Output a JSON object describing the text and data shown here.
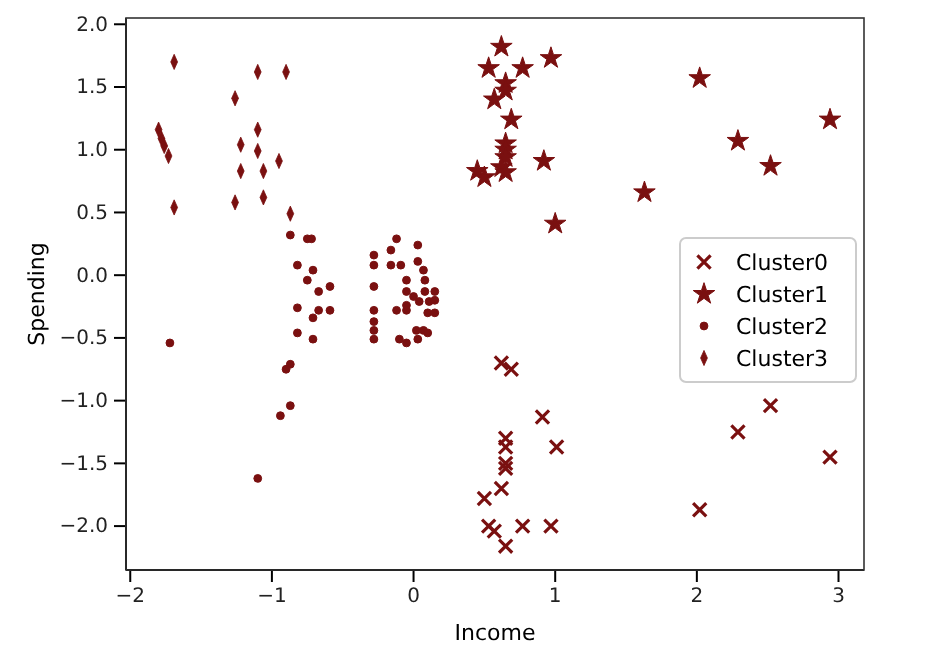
{
  "chart_data": {
    "type": "scatter",
    "xlabel": "Income",
    "ylabel": "Spending",
    "xlim": [
      -2.03,
      3.18
    ],
    "ylim": [
      -2.35,
      2.05
    ],
    "xticks": [
      {
        "value": -2,
        "label": "−2"
      },
      {
        "value": -1,
        "label": "−1"
      },
      0,
      1,
      2,
      3
    ],
    "yticks": [
      {
        "value": -2,
        "label": "−2.0"
      },
      {
        "value": -1.5,
        "label": "−1.5"
      },
      {
        "value": -1,
        "label": "−1.0"
      },
      {
        "value": -0.5,
        "label": "−0.5"
      },
      {
        "value": 0,
        "label": "0.0"
      },
      {
        "value": 0.5,
        "label": "0.5"
      },
      {
        "value": 1,
        "label": "1.0"
      },
      {
        "value": 1.5,
        "label": "1.5"
      },
      {
        "value": 2,
        "label": "2.0"
      }
    ],
    "grid": false,
    "legend": "right",
    "series": [
      {
        "name": "Cluster0",
        "color": "#7a1010",
        "marker": "cross",
        "x": [
          0.62,
          0.69,
          0.91,
          1.01,
          0.65,
          0.65,
          0.65,
          0.65,
          0.62,
          0.5,
          0.53,
          0.57,
          0.65,
          0.77,
          0.97,
          2.02,
          2.29,
          2.52,
          2.94
        ],
        "values": [
          -0.7,
          -0.75,
          -1.13,
          -1.37,
          -1.3,
          -1.37,
          -1.5,
          -1.54,
          -1.7,
          -1.78,
          -2.0,
          -2.04,
          -2.16,
          -2.0,
          -2.0,
          -1.87,
          -1.25,
          -1.04,
          -1.45
        ]
      },
      {
        "name": "Cluster1",
        "color": "#7a1010",
        "marker": "star",
        "x": [
          0.62,
          0.53,
          0.77,
          0.97,
          0.65,
          0.65,
          0.57,
          0.69,
          0.65,
          0.65,
          0.65,
          0.92,
          0.62,
          0.65,
          0.45,
          0.5,
          1.0,
          1.63,
          2.02,
          2.29,
          2.52,
          2.94
        ],
        "values": [
          1.82,
          1.65,
          1.65,
          1.73,
          1.53,
          1.47,
          1.4,
          1.24,
          1.05,
          1.0,
          0.94,
          0.91,
          0.86,
          0.82,
          0.83,
          0.78,
          0.41,
          0.66,
          1.57,
          1.07,
          0.87,
          1.24
        ]
      },
      {
        "name": "Cluster2",
        "color": "#7a1010",
        "marker": "circle",
        "x": [
          -0.87,
          -0.75,
          -0.72,
          -0.82,
          -0.71,
          -0.75,
          -0.59,
          -0.67,
          -0.82,
          -0.67,
          -0.59,
          -0.71,
          -0.82,
          -0.71,
          -1.72,
          -0.87,
          -0.9,
          -0.87,
          -0.94,
          -1.1,
          -0.28,
          -0.28,
          -0.28,
          -0.28,
          -0.28,
          -0.28,
          -0.28,
          -0.16,
          -0.12,
          -0.16,
          -0.09,
          -0.12,
          -0.05,
          0.03,
          0.03,
          0.07,
          0.08,
          -0.05,
          -0.05,
          0.0,
          0.08,
          0.15,
          0.04,
          0.11,
          -0.05,
          0.1,
          0.15,
          0.15,
          -0.1,
          -0.05,
          0.03,
          0.07,
          0.1,
          0.02
        ],
        "values": [
          0.32,
          0.29,
          0.29,
          0.08,
          0.04,
          -0.04,
          -0.09,
          -0.13,
          -0.26,
          -0.28,
          -0.28,
          -0.34,
          -0.46,
          -0.51,
          -0.54,
          -0.71,
          -0.75,
          -1.04,
          -1.12,
          -1.62,
          0.16,
          0.08,
          -0.09,
          -0.28,
          -0.37,
          -0.44,
          -0.51,
          0.2,
          0.29,
          0.08,
          0.08,
          -0.28,
          -0.28,
          0.24,
          0.11,
          0.04,
          -0.04,
          -0.04,
          -0.13,
          -0.17,
          -0.13,
          -0.13,
          -0.21,
          -0.21,
          -0.24,
          -0.3,
          -0.3,
          -0.2,
          -0.51,
          -0.54,
          -0.51,
          -0.44,
          -0.46,
          -0.44
        ]
      },
      {
        "name": "Cluster3",
        "color": "#7a1010",
        "marker": "diamond",
        "x": [
          -1.69,
          -1.1,
          -0.9,
          -1.26,
          -1.8,
          -1.78,
          -1.76,
          -1.73,
          -1.1,
          -1.22,
          -1.1,
          -0.95,
          -1.22,
          -1.06,
          -1.06,
          -1.69,
          -1.26,
          -0.87
        ],
        "values": [
          1.7,
          1.62,
          1.62,
          1.41,
          1.16,
          1.09,
          1.03,
          0.95,
          1.16,
          1.04,
          0.99,
          0.91,
          0.83,
          0.83,
          0.62,
          0.54,
          0.58,
          0.49
        ]
      }
    ]
  }
}
